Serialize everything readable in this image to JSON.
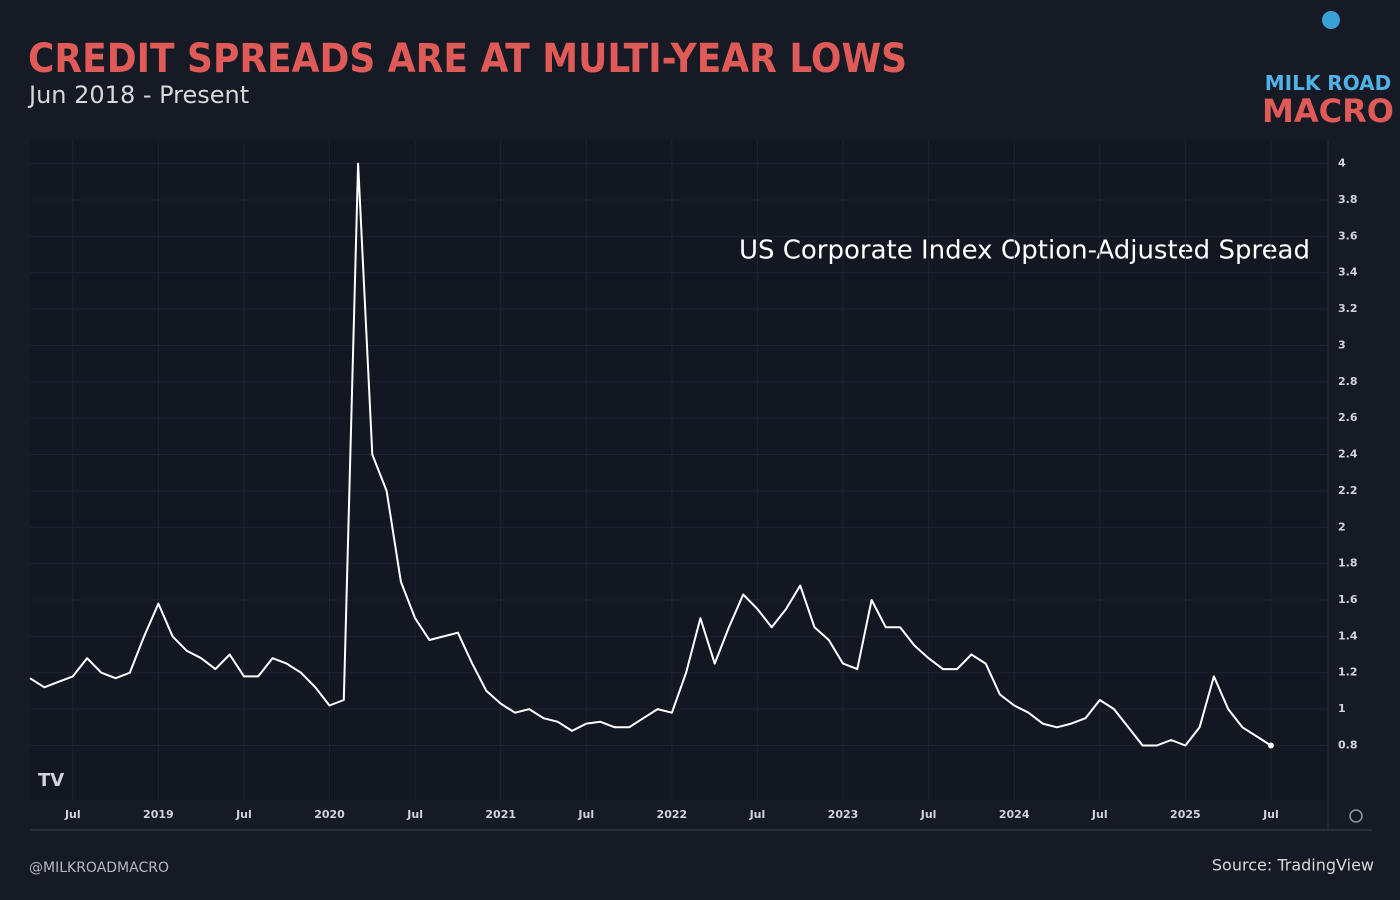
{
  "chart_data": {
    "type": "line",
    "title": "CREDIT SPREADS ARE AT MULTI-YEAR LOWS",
    "subtitle": "Jun 2018 - Present",
    "logo_top": "MILK ROAD",
    "logo_bottom": "MACRO",
    "credit": "@MILKROADMACRO",
    "source": "Source: TradingView",
    "x": [
      "2018-04",
      "2018-05",
      "2018-06",
      "2018-07",
      "2018-08",
      "2018-09",
      "2018-10",
      "2018-11",
      "2018-12",
      "2019-01",
      "2019-02",
      "2019-03",
      "2019-04",
      "2019-05",
      "2019-06",
      "2019-07",
      "2019-08",
      "2019-09",
      "2019-10",
      "2019-11",
      "2019-12",
      "2020-01",
      "2020-02",
      "2020-03",
      "2020-04",
      "2020-05",
      "2020-06",
      "2020-07",
      "2020-08",
      "2020-09",
      "2020-10",
      "2020-11",
      "2020-12",
      "2021-01",
      "2021-02",
      "2021-03",
      "2021-04",
      "2021-05",
      "2021-06",
      "2021-07",
      "2021-08",
      "2021-09",
      "2021-10",
      "2021-11",
      "2021-12",
      "2022-01",
      "2022-02",
      "2022-03",
      "2022-04",
      "2022-05",
      "2022-06",
      "2022-07",
      "2022-08",
      "2022-09",
      "2022-10",
      "2022-11",
      "2022-12",
      "2023-01",
      "2023-02",
      "2023-03",
      "2023-04",
      "2023-05",
      "2023-06",
      "2023-07",
      "2023-08",
      "2023-09",
      "2023-10",
      "2023-11",
      "2023-12",
      "2024-01",
      "2024-02",
      "2024-03",
      "2024-04",
      "2024-05",
      "2024-06",
      "2024-07",
      "2024-08",
      "2024-09",
      "2024-10",
      "2024-11",
      "2024-12",
      "2025-01",
      "2025-02",
      "2025-03",
      "2025-04",
      "2025-05",
      "2025-06",
      "2025-07"
    ],
    "series": [
      {
        "name": "US Corporate Index Option-Adjusted Spread",
        "color": "#ffffff",
        "values": [
          1.17,
          1.12,
          1.15,
          1.18,
          1.28,
          1.2,
          1.17,
          1.2,
          1.4,
          1.58,
          1.4,
          1.32,
          1.28,
          1.22,
          1.3,
          1.18,
          1.18,
          1.28,
          1.25,
          1.2,
          1.12,
          1.02,
          1.05,
          4.0,
          2.4,
          2.2,
          1.7,
          1.5,
          1.38,
          1.4,
          1.42,
          1.25,
          1.1,
          1.03,
          0.98,
          1.0,
          0.95,
          0.93,
          0.88,
          0.92,
          0.93,
          0.9,
          0.9,
          0.95,
          1.0,
          0.98,
          1.2,
          1.5,
          1.25,
          1.45,
          1.63,
          1.55,
          1.45,
          1.55,
          1.68,
          1.45,
          1.38,
          1.25,
          1.22,
          1.6,
          1.45,
          1.45,
          1.35,
          1.28,
          1.22,
          1.22,
          1.3,
          1.25,
          1.08,
          1.02,
          0.98,
          0.92,
          0.9,
          0.92,
          0.95,
          1.05,
          1.0,
          0.9,
          0.8,
          0.8,
          0.83,
          0.8,
          0.9,
          1.18,
          1.0,
          0.9,
          0.85,
          0.8
        ]
      }
    ],
    "xlim": [
      "2018-04",
      "2025-11"
    ],
    "xticks": [
      {
        "value": "2018-07",
        "label": "Jul"
      },
      {
        "value": "2019-01",
        "label": "2019"
      },
      {
        "value": "2019-07",
        "label": "Jul"
      },
      {
        "value": "2020-01",
        "label": "2020"
      },
      {
        "value": "2020-07",
        "label": "Jul"
      },
      {
        "value": "2021-01",
        "label": "2021"
      },
      {
        "value": "2021-07",
        "label": "Jul"
      },
      {
        "value": "2022-01",
        "label": "2022"
      },
      {
        "value": "2022-07",
        "label": "Jul"
      },
      {
        "value": "2023-01",
        "label": "2023"
      },
      {
        "value": "2023-07",
        "label": "Jul"
      },
      {
        "value": "2024-01",
        "label": "2024"
      },
      {
        "value": "2024-07",
        "label": "Jul"
      },
      {
        "value": "2025-01",
        "label": "2025"
      },
      {
        "value": "2025-07",
        "label": "Jul"
      }
    ],
    "ylim": [
      0.5,
      4.13
    ],
    "yticks": [
      0.8,
      1,
      1.2,
      1.4,
      1.6,
      1.8,
      2,
      2.2,
      2.4,
      2.6,
      2.8,
      3,
      3.2,
      3.4,
      3.6,
      3.8,
      4
    ],
    "grid": true
  }
}
